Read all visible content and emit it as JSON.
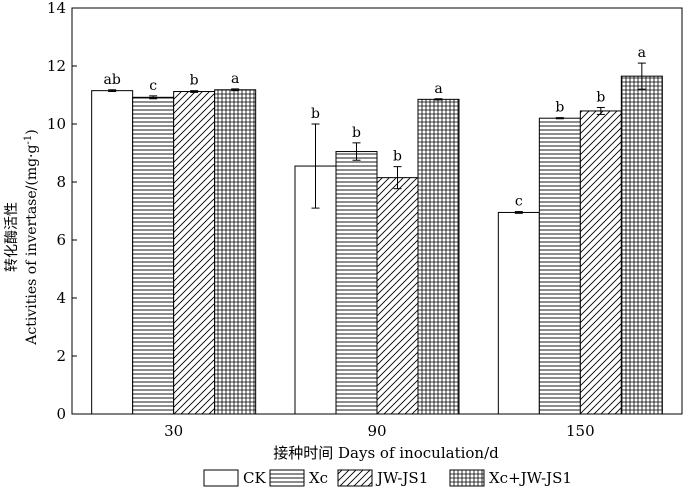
{
  "chart_data": {
    "type": "bar",
    "ylabel_cn": "转化酶活性",
    "ylabel_en": "Activities of invertase/(mg·g",
    "ylabel_sup": "-1",
    "ylabel_close": ")",
    "xlabel": "接种时间 Days of inoculation/d",
    "ylim": [
      0,
      14
    ],
    "yticks": [
      0,
      2,
      4,
      6,
      8,
      10,
      12,
      14
    ],
    "categories": [
      "30",
      "90",
      "150"
    ],
    "legend_position": "bottom",
    "series": [
      {
        "name": "CK",
        "pattern": "blank",
        "values": [
          11.15,
          8.55,
          6.95
        ],
        "errors": [
          0.03,
          1.45,
          0.03
        ],
        "letters": [
          "ab",
          "b",
          "c"
        ]
      },
      {
        "name": "Xc",
        "pattern": "horizontal-lines",
        "values": [
          10.92,
          9.05,
          10.2
        ],
        "errors": [
          0.05,
          0.3,
          0.02
        ],
        "letters": [
          "c",
          "b",
          "b"
        ]
      },
      {
        "name": "JW-JS1",
        "pattern": "diagonal-lines",
        "values": [
          11.12,
          8.15,
          10.45
        ],
        "errors": [
          0.03,
          0.38,
          0.12
        ],
        "letters": [
          "b",
          "b",
          "b"
        ]
      },
      {
        "name": "Xc+JW-JS1",
        "pattern": "grid",
        "values": [
          11.18,
          10.85,
          11.65
        ],
        "errors": [
          0.03,
          0.02,
          0.45
        ],
        "letters": [
          "a",
          "a",
          "a"
        ]
      }
    ]
  }
}
